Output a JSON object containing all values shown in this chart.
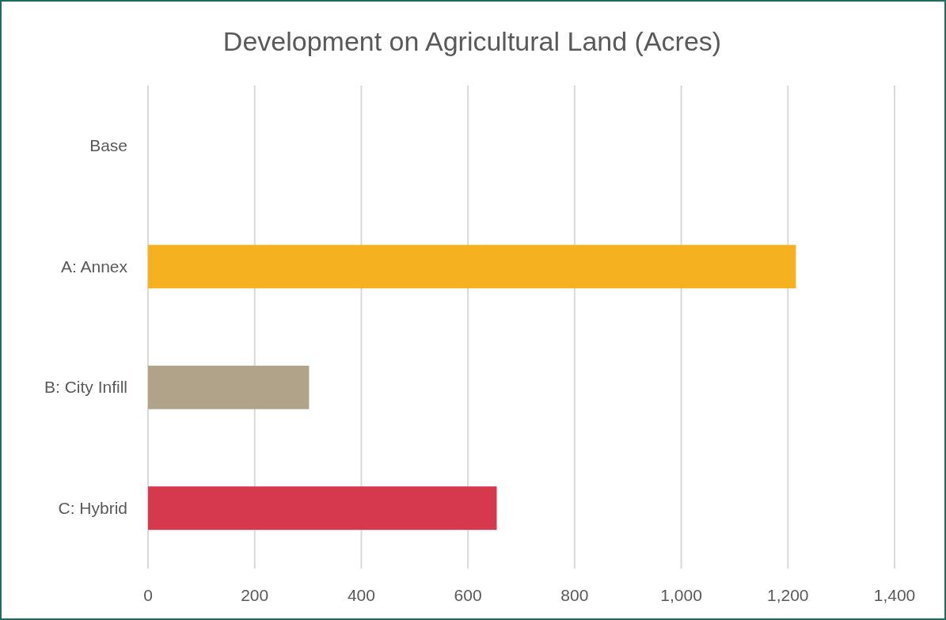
{
  "chart_data": {
    "type": "bar",
    "orientation": "horizontal",
    "title": "Development on Agricultural Land (Acres)",
    "categories": [
      "Base",
      "A: Annex",
      "B: City Infill",
      "C: Hybrid"
    ],
    "values": [
      0,
      1215,
      302,
      654
    ],
    "colors": [
      "#f5b120",
      "#f5b120",
      "#b1a28a",
      "#d6394e"
    ],
    "xlim": [
      0,
      1400
    ],
    "xticks": [
      0,
      200,
      400,
      600,
      800,
      {
        "value": 1000,
        "label": "1,000"
      },
      {
        "value": 1200,
        "label": "1,200"
      },
      {
        "value": 1400,
        "label": "1,400"
      }
    ],
    "grid": "x"
  }
}
